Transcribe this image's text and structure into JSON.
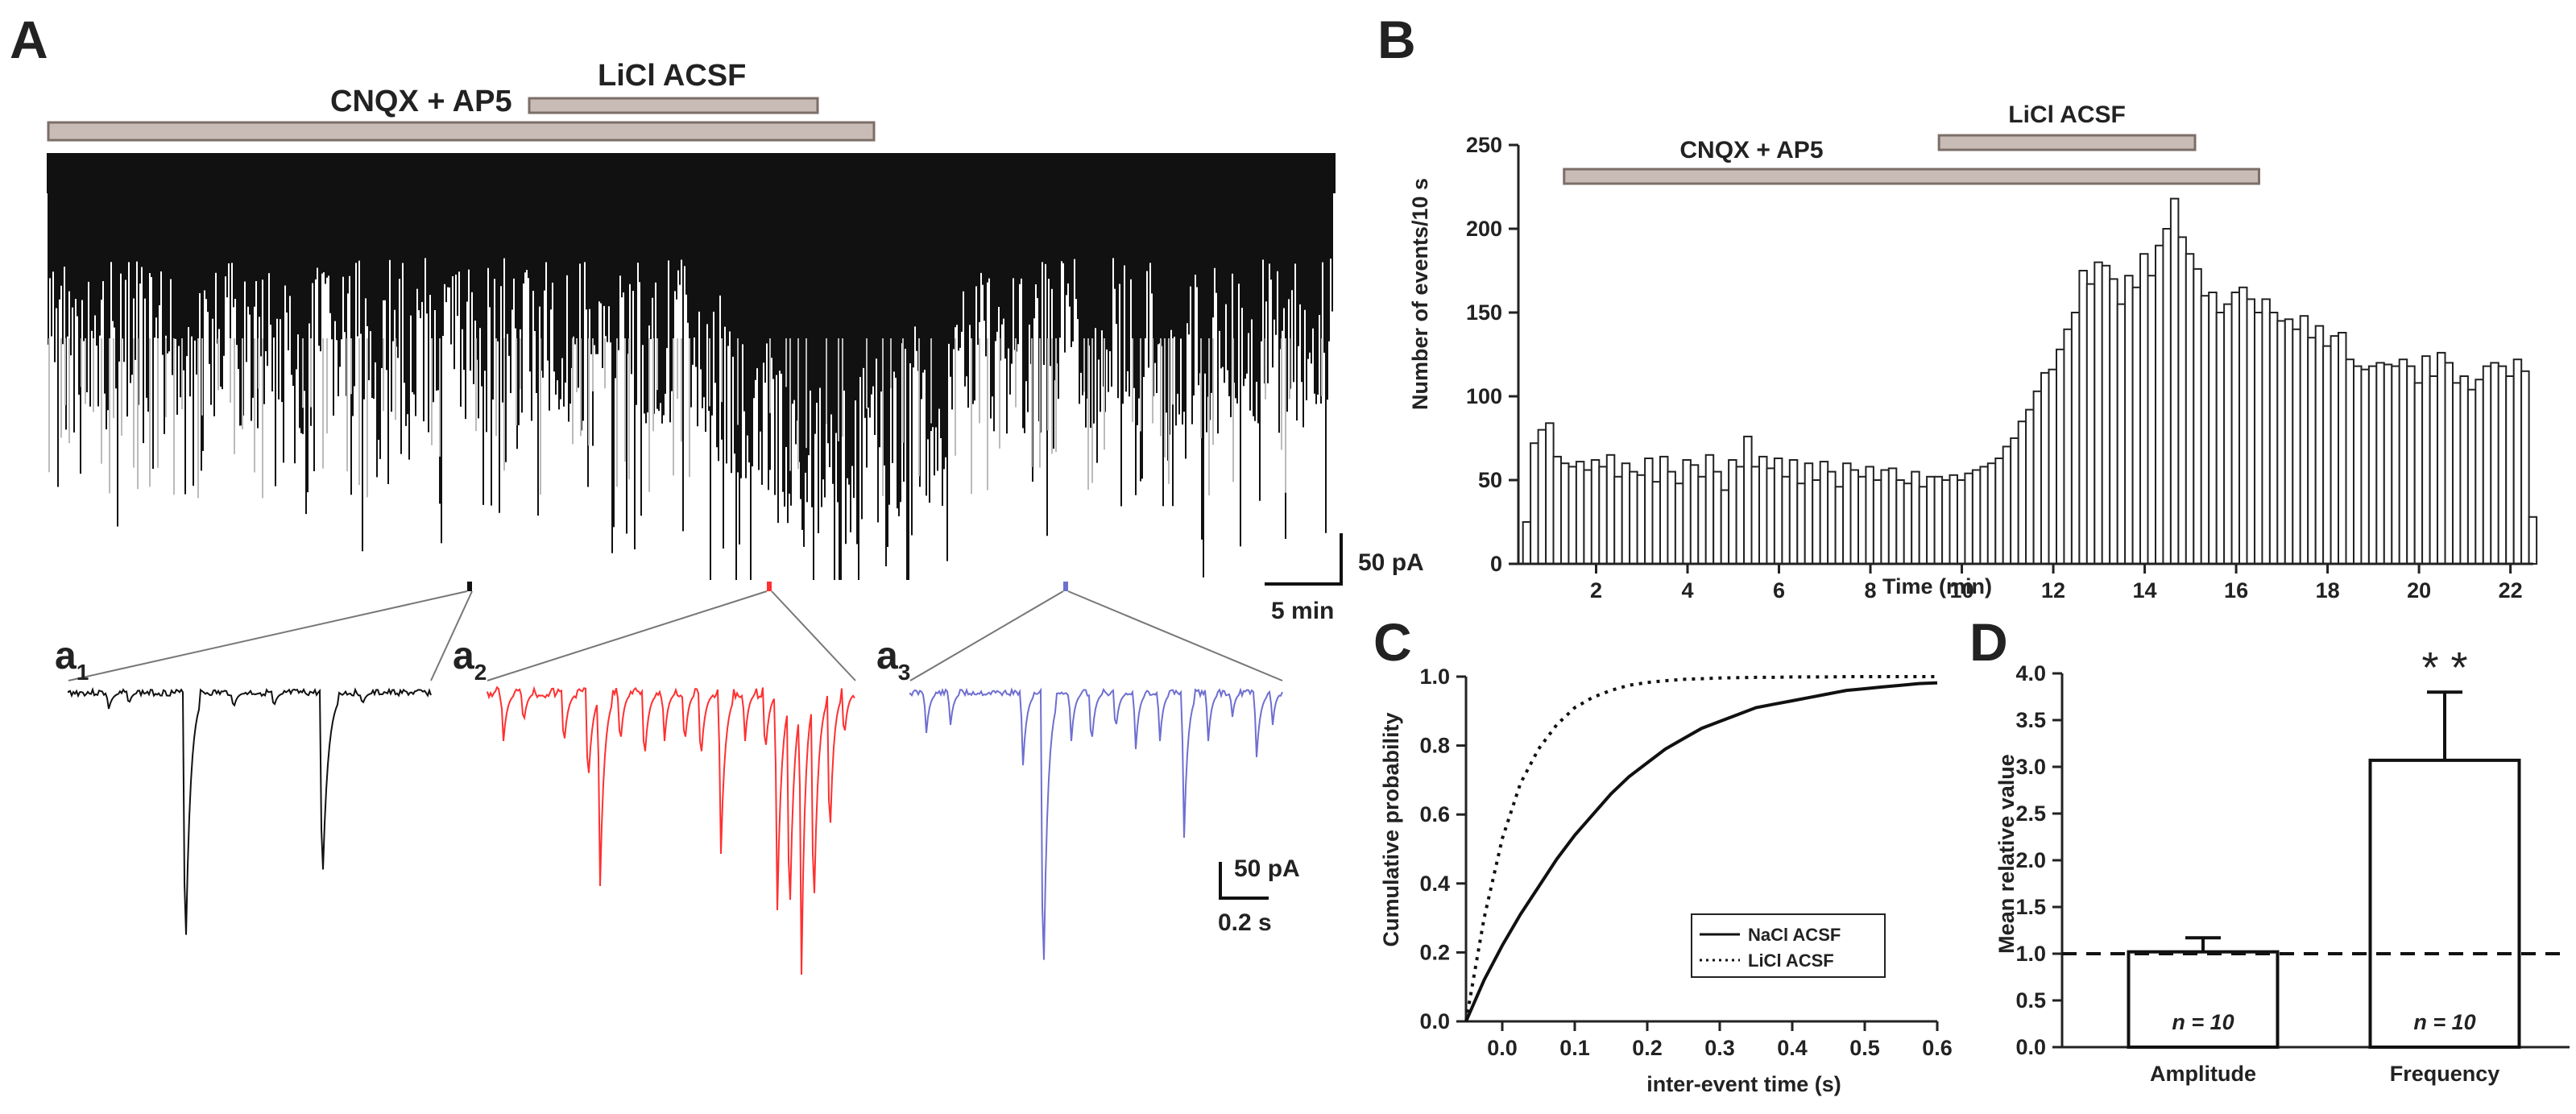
{
  "panels": {
    "A": "A",
    "B": "B",
    "C": "C",
    "D": "D"
  },
  "colors": {
    "axis": "#222222",
    "bar_fill": "#c9bcb7",
    "bar_stroke": "#7c6e68",
    "trace_black": "#111111",
    "trace_red": "#ff3030",
    "trace_blue": "#6f6fd0"
  },
  "panel_A": {
    "cnqx_label": "CNQX + AP5",
    "licl_label": "LiCl ACSF",
    "scale_amp": "50 pA",
    "scale_time": "5 min",
    "insets": [
      {
        "label": "a",
        "sub": "1"
      },
      {
        "label": "a",
        "sub": "2"
      },
      {
        "label": "a",
        "sub": "3"
      }
    ],
    "inset_scale_amp": "50 pA",
    "inset_scale_time": "0.2 s"
  },
  "chart_data": [
    {
      "id": "B",
      "type": "bar",
      "title": "",
      "xlabel": "Time (min)",
      "ylabel": "Number of events/10 s",
      "xlim": [
        0.3,
        22.5
      ],
      "ylim": [
        0,
        250
      ],
      "xticks": [
        2,
        4,
        6,
        8,
        10,
        12,
        14,
        16,
        18,
        20,
        22
      ],
      "yticks": [
        0,
        50,
        100,
        150,
        200,
        250
      ],
      "bin_width_min": 0.1667,
      "x_start": 0.4,
      "values": [
        25,
        72,
        80,
        84,
        64,
        60,
        58,
        61,
        56,
        62,
        58,
        65,
        52,
        60,
        55,
        53,
        63,
        49,
        64,
        55,
        48,
        62,
        59,
        52,
        65,
        55,
        44,
        62,
        58,
        76,
        58,
        64,
        57,
        63,
        52,
        62,
        48,
        60,
        50,
        61,
        55,
        46,
        60,
        56,
        52,
        58,
        50,
        56,
        57,
        50,
        48,
        55,
        46,
        52,
        52,
        50,
        53,
        50,
        54,
        56,
        58,
        60,
        63,
        70,
        75,
        85,
        92,
        103,
        114,
        116,
        128,
        140,
        150,
        175,
        167,
        180,
        178,
        170,
        155,
        172,
        165,
        185,
        172,
        190,
        200,
        218,
        195,
        185,
        176,
        160,
        162,
        150,
        155,
        162,
        165,
        158,
        150,
        158,
        150,
        145,
        146,
        140,
        148,
        135,
        142,
        130,
        136,
        138,
        122,
        118,
        116,
        118,
        120,
        119,
        118,
        122,
        118,
        108,
        124,
        112,
        126,
        120,
        108,
        112,
        104,
        110,
        118,
        120,
        118,
        112,
        122,
        115,
        28
      ],
      "bars": [
        {
          "label": "CNQX + AP5",
          "start": 1.3,
          "end": 16.5
        },
        {
          "label": "LiCl ACSF",
          "start": 9.5,
          "end": 15.1
        }
      ]
    },
    {
      "id": "C",
      "type": "line",
      "title": "",
      "xlabel": "inter-event time (s)",
      "ylabel": "Cumulative probability",
      "xlim": [
        -0.05,
        0.6
      ],
      "ylim": [
        0,
        1.0
      ],
      "xticks": [
        0.0,
        0.1,
        0.2,
        0.3,
        0.4,
        0.5,
        0.6
      ],
      "yticks": [
        0.0,
        0.2,
        0.4,
        0.6,
        0.8,
        1.0
      ],
      "x": [
        -0.05,
        -0.025,
        0.0,
        0.025,
        0.05,
        0.075,
        0.1,
        0.125,
        0.15,
        0.175,
        0.2,
        0.225,
        0.25,
        0.275,
        0.3,
        0.325,
        0.35,
        0.375,
        0.4,
        0.425,
        0.45,
        0.475,
        0.5,
        0.525,
        0.55,
        0.575,
        0.6
      ],
      "series": [
        {
          "name": "NaCl ACSF",
          "style": "solid",
          "values": [
            0.0,
            0.12,
            0.22,
            0.31,
            0.39,
            0.47,
            0.54,
            0.6,
            0.66,
            0.71,
            0.75,
            0.79,
            0.82,
            0.85,
            0.87,
            0.89,
            0.91,
            0.92,
            0.93,
            0.94,
            0.95,
            0.96,
            0.965,
            0.97,
            0.975,
            0.98,
            0.982
          ]
        },
        {
          "name": "LiCl ACSF",
          "style": "dotted",
          "values": [
            0.0,
            0.3,
            0.53,
            0.69,
            0.79,
            0.86,
            0.91,
            0.94,
            0.96,
            0.975,
            0.983,
            0.988,
            0.992,
            0.994,
            0.996,
            0.997,
            0.998,
            0.998,
            0.999,
            0.999,
            0.999,
            1.0,
            1.0,
            1.0,
            1.0,
            1.0,
            1.0
          ]
        }
      ],
      "legend": {
        "placement": "bottom-right",
        "entries": [
          "NaCl ACSF",
          "LiCl ACSF"
        ]
      }
    },
    {
      "id": "D",
      "type": "bar",
      "title": "",
      "xlabel": "",
      "ylabel": "Mean relative value",
      "ylim": [
        0,
        4.0
      ],
      "yticks": [
        0.0,
        0.5,
        1.0,
        1.5,
        2.0,
        2.5,
        3.0,
        3.5,
        4.0
      ],
      "categories": [
        "Amplitude",
        "Frequency"
      ],
      "values": [
        1.02,
        3.07
      ],
      "errors": [
        0.15,
        0.73
      ],
      "n_labels": [
        "n = 10",
        "n = 10"
      ],
      "significance": [
        "",
        "* *"
      ],
      "reference_line": 1.0
    }
  ]
}
